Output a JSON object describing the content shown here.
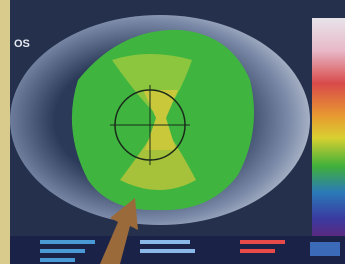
{
  "eye_label": "OS"
}
